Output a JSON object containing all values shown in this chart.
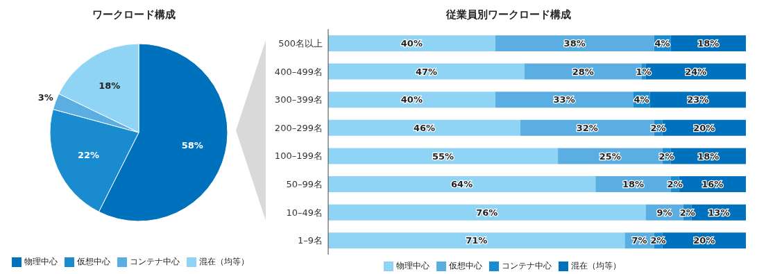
{
  "chart_data": [
    {
      "type": "pie",
      "title": "ワークロード構成",
      "categories": [
        "物理中心",
        "仮想中心",
        "コンテナ中心",
        "混在（均等）"
      ],
      "values": [
        58,
        22,
        3,
        18
      ],
      "colors": [
        "#0071bc",
        "#1b8bd0",
        "#5aaee2",
        "#8fd4f5"
      ],
      "value_labels": [
        "58%",
        "22%",
        "3%",
        "18%"
      ],
      "legend": "bottom"
    },
    {
      "type": "bar",
      "title": "従業員別ワークロード構成",
      "orientation": "horizontal",
      "stacked": true,
      "categories": [
        "500名以上",
        "400–499名",
        "300–399名",
        "200–299名",
        "100–199名",
        "50–99名",
        "10–49名",
        "1–9名"
      ],
      "xlim": [
        0,
        100
      ],
      "tick_labels": "y",
      "legend": "bottom",
      "series": [
        {
          "name": "物理中心",
          "color": "#8fd4f5",
          "values": [
            40,
            47,
            40,
            46,
            55,
            64,
            76,
            71
          ],
          "value_labels": [
            "40%",
            "47%",
            "40%",
            "46%",
            "55%",
            "64%",
            "76%",
            "71%"
          ]
        },
        {
          "name": "仮想中心",
          "color": "#5aaee2",
          "values": [
            38,
            28,
            33,
            32,
            25,
            18,
            9,
            7
          ],
          "value_labels": [
            "38%",
            "28%",
            "33%",
            "32%",
            "25%",
            "18%",
            "9%",
            "7%"
          ]
        },
        {
          "name": "コンテナ中心",
          "color": "#1b8bd0",
          "values": [
            4,
            1,
            4,
            2,
            2,
            2,
            2,
            2
          ],
          "value_labels": [
            "4%",
            "1%",
            "4%",
            "2%",
            "2%",
            "2%",
            "2%",
            "2%"
          ]
        },
        {
          "name": "混在（均等）",
          "color": "#0071bc",
          "values": [
            18,
            24,
            23,
            20,
            18,
            16,
            13,
            20
          ],
          "value_labels": [
            "18%",
            "24%",
            "23%",
            "20%",
            "18%",
            "16%",
            "13%",
            "20%"
          ]
        }
      ]
    }
  ]
}
